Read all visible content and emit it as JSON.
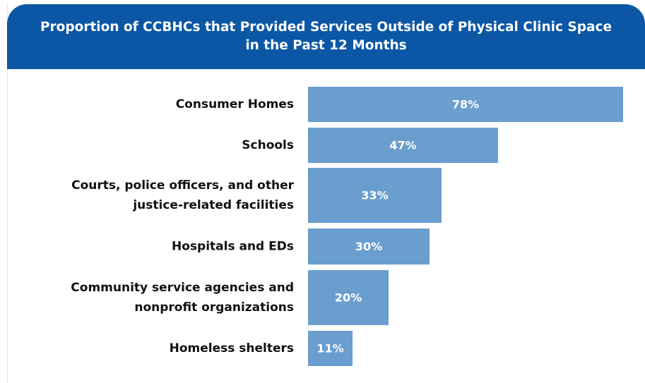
{
  "chart_data": {
    "type": "bar",
    "orientation": "horizontal",
    "title": "Proportion of CCBHCs that Provided Services Outside of Physical Clinic Space in the Past 12 Months",
    "categories": [
      [
        "Consumer Homes"
      ],
      [
        "Schools"
      ],
      [
        "Courts, police officers, and other",
        "justice-related facilities"
      ],
      [
        "Hospitals and EDs"
      ],
      [
        "Community service agencies and",
        "nonprofit organizations"
      ],
      [
        "Homeless shelters"
      ]
    ],
    "values": [
      78,
      47,
      33,
      30,
      20,
      11
    ],
    "value_labels": [
      "78%",
      "47%",
      "33%",
      "30%",
      "20%",
      "11%"
    ],
    "xlim": [
      0,
      78
    ],
    "grid": false,
    "bar_color": "#6a9ecf",
    "header_color": "#0b57a5"
  }
}
